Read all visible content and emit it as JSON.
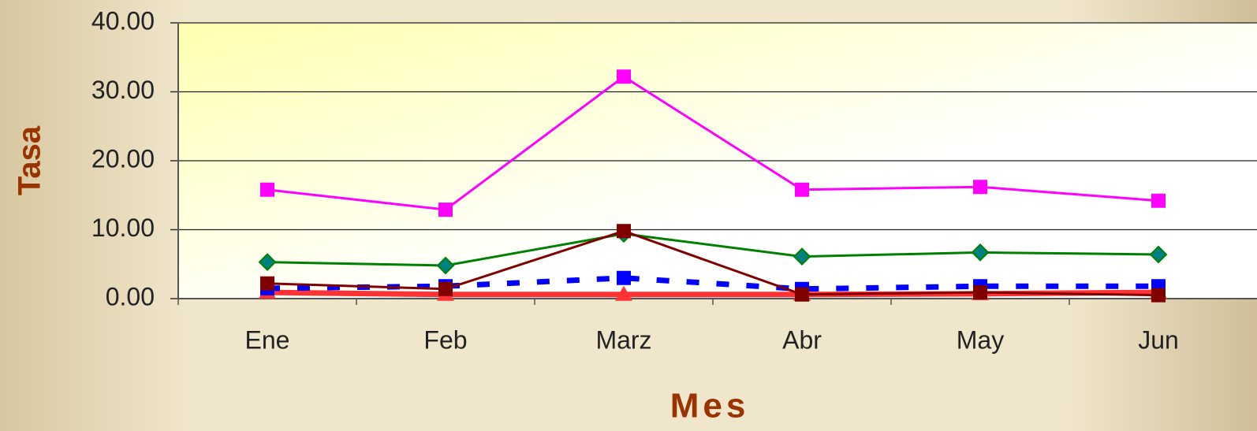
{
  "chart_data": {
    "type": "line",
    "x_label": "Mes",
    "y_label": "Tasa",
    "categories": [
      "Ene",
      "Feb",
      "Marz",
      "Abr",
      "May",
      "Jun"
    ],
    "series": [
      {
        "color": "#ff00ff",
        "marker": "square",
        "line_width": 3,
        "dashed": false,
        "values": [
          15.8,
          12.9,
          32.2,
          15.8,
          16.2,
          14.2
        ]
      },
      {
        "color": "#008000",
        "marker": "diamond",
        "line_width": 3,
        "dashed": false,
        "values": [
          5.3,
          4.8,
          9.4,
          6.1,
          6.7,
          6.4
        ]
      },
      {
        "color": "#ff3333",
        "marker": "triangle",
        "line_width": 7,
        "dashed": false,
        "values": [
          0.9,
          0.6,
          0.6,
          0.6,
          0.7,
          0.9
        ]
      },
      {
        "color": "#0000ff",
        "marker": "square",
        "line_width": 7,
        "dashed": true,
        "values": [
          1.5,
          1.8,
          3.0,
          1.4,
          1.8,
          1.8
        ]
      },
      {
        "color": "#800000",
        "marker": "square",
        "line_width": 3,
        "dashed": false,
        "values": [
          2.2,
          1.4,
          9.8,
          0.6,
          0.9,
          0.5
        ]
      }
    ],
    "ylim": [
      0,
      40
    ],
    "yticks": [
      {
        "value": 0,
        "label": "0.00"
      },
      {
        "value": 10,
        "label": "10.00"
      },
      {
        "value": 20,
        "label": "20.00"
      },
      {
        "value": 30,
        "label": "30.00"
      },
      {
        "value": 40,
        "label": "40.00"
      }
    ],
    "grid": true
  }
}
